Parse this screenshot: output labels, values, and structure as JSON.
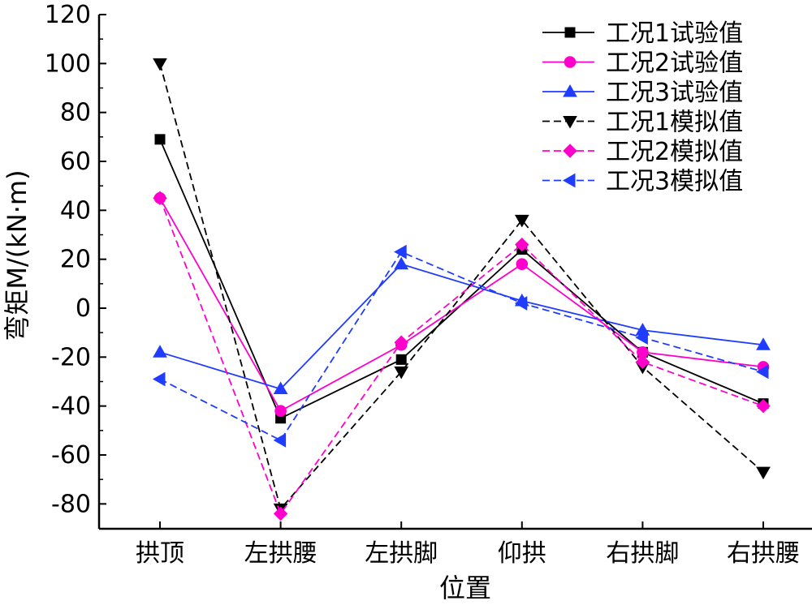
{
  "chart_data": {
    "type": "line",
    "xlabel": "位置",
    "ylabel": "弯矩M/(kN·m)",
    "categories": [
      "拱顶",
      "左拱腰",
      "左拱脚",
      "仰拱",
      "右拱脚",
      "右拱腰"
    ],
    "ylim": [
      -90,
      120
    ],
    "yticks": [
      120,
      100,
      80,
      60,
      40,
      20,
      0,
      -20,
      -40,
      -60,
      -80
    ],
    "grid": false,
    "legend_position": "top-right",
    "series": [
      {
        "name": "工况1试验值",
        "values": [
          69,
          -45,
          -21,
          24,
          -18,
          -39
        ],
        "color": "#000000",
        "dash": "solid",
        "marker": "square"
      },
      {
        "name": "工况2试验值",
        "values": [
          45,
          -42,
          -15,
          18,
          -18,
          -24
        ],
        "color": "#ff00cc",
        "dash": "solid",
        "marker": "circle"
      },
      {
        "name": "工况3试验值",
        "values": [
          -18,
          -33,
          18,
          3,
          -9,
          -15
        ],
        "color": "#1f3cff",
        "dash": "solid",
        "marker": "triangle-up"
      },
      {
        "name": "工况1模拟值",
        "values": [
          100,
          -82,
          -26,
          36,
          -24,
          -67
        ],
        "color": "#000000",
        "dash": "dashed",
        "marker": "triangle-down"
      },
      {
        "name": "工况2模拟值",
        "values": [
          45,
          -84,
          -14,
          26,
          -22,
          -40
        ],
        "color": "#ff00cc",
        "dash": "dashed",
        "marker": "diamond"
      },
      {
        "name": "工况3模拟值",
        "values": [
          -29,
          -54,
          23,
          2,
          -12,
          -26
        ],
        "color": "#1f3cff",
        "dash": "dashed",
        "marker": "triangle-left"
      }
    ]
  }
}
